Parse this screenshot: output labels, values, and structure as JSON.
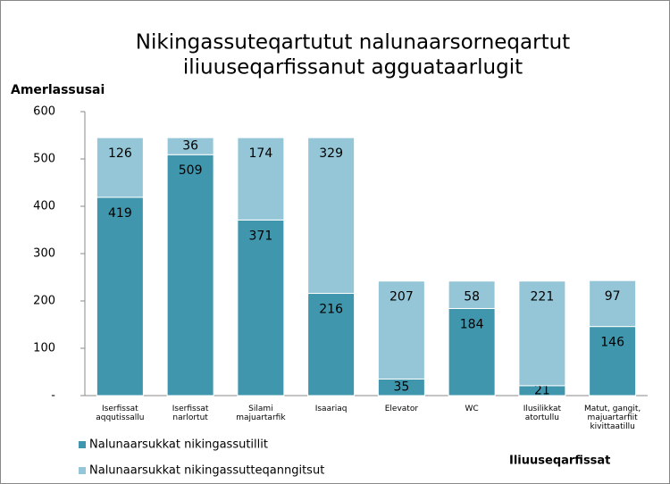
{
  "chart_data": {
    "type": "stacked_bar",
    "title": [
      "Nikingassuteqartutut nalunaarsorneqartut",
      "iliuuseqarfissanut agguataarlugit"
    ],
    "y_label": "Amerlassusai",
    "x_label": "Iliuuseqarfissat",
    "categories": [
      "Iserfissat aqqutissallu",
      "Iserfissat narlortut",
      "Silami majuartarfik",
      "Isaariaq",
      "Elevator",
      "WC",
      "Ilusilikkat atortullu",
      "Matut, gangit, majuartarfiit kivittaatillu"
    ],
    "series": [
      {
        "name": "Nalunaarsukkat nikingassutillit",
        "color": "#4097ad",
        "values": [
          419,
          509,
          371,
          216,
          35,
          184,
          21,
          146
        ]
      },
      {
        "name": "Nalunaarsukkat nikingassutteqanngitsut",
        "color": "#94c6d7",
        "values": [
          126,
          36,
          174,
          329,
          207,
          58,
          221,
          97
        ]
      }
    ],
    "ylim": [
      0,
      600
    ],
    "yticks": [
      {
        "value": 0,
        "label": "-"
      },
      100,
      200,
      300,
      400,
      500,
      600
    ],
    "legend": "bottom-left"
  }
}
